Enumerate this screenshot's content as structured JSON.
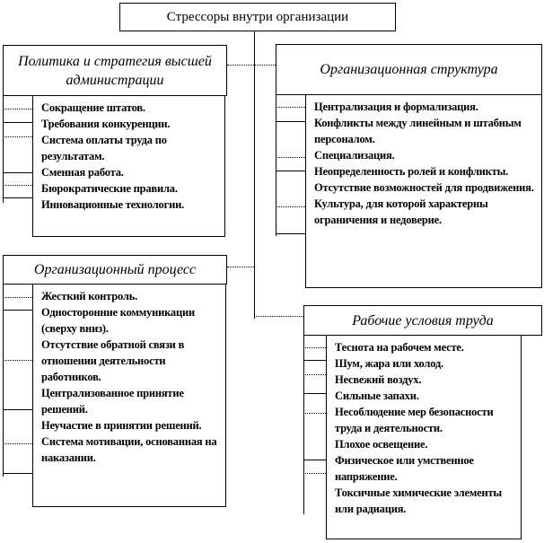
{
  "title": "Стрессоры внутри организации",
  "groups": [
    {
      "header": "Политика и стратегия высшей администрации",
      "items": [
        "Сокращение штатов.",
        "Требования конкуренции.",
        "Система оплаты труда по результатам.",
        "Сменная работа.",
        "Бюрократические правила.",
        "Инновационные технологии."
      ]
    },
    {
      "header": "Организационная структура",
      "items": [
        "Централизация и формализация.",
        "Конфликты между линейным и штабным персоналом.",
        "Специализация.",
        "Неопределенность ролей и конфликты.",
        "Отсутствие возможностей для продвижения.",
        "Культура, для которой характерны ограничения и недоверие."
      ]
    },
    {
      "header": "Организационный процесс",
      "items": [
        "Жесткий контроль.",
        "Односторонние коммуникации (сверху вниз).",
        "Отсутствие обратной связи в отношении деятельности работников.",
        "Централизованное принятие решений.",
        "Неучастие в принятии решений.",
        "Система мотивации, основанная на наказании."
      ]
    },
    {
      "header": "Рабочие условия труда",
      "items": [
        "Теснота на рабочем месте.",
        "Шум, жара или холод.",
        "Несвежий воздух.",
        "Сильные запахи.",
        "Несоблюдение мер безопасности труда и деятельности.",
        "Плохое освещение.",
        "Физическое или умственное напряжение.",
        "Токсичные химические элементы или радиация."
      ]
    }
  ]
}
